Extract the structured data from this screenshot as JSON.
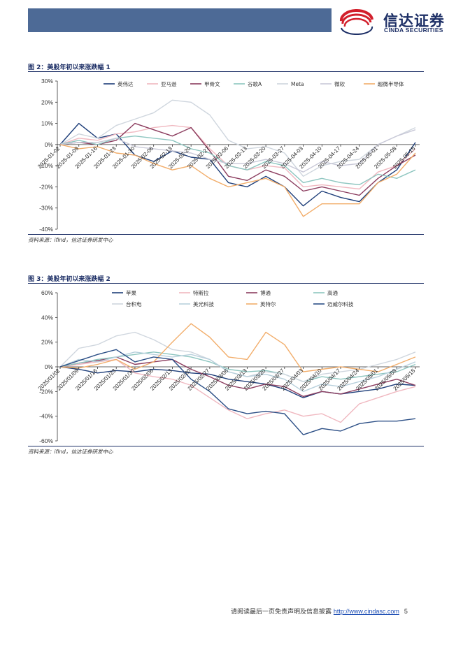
{
  "header": {
    "bar_color": "#4d6a96"
  },
  "logo": {
    "name_cn": "信达证券",
    "name_en": "CINDA SECURITIES"
  },
  "figure2": {
    "title": "图 2：美股年初以来涨跌幅 1",
    "source": "资料来源：ifind，信达证券研发中心"
  },
  "figure3": {
    "title": "图 3：美股年初以来涨跌幅 2",
    "source": "资料来源：ifind，信达证券研发中心"
  },
  "footer": {
    "disclaimer": "请阅读最后一页免责声明及信息披露",
    "url": "http://www.cindasc.com",
    "page": "5"
  },
  "chart_data": [
    {
      "type": "line",
      "ylim": [
        -40,
        30
      ],
      "yticks": [
        -40,
        -30,
        -20,
        -10,
        0,
        10,
        20,
        30
      ],
      "ytick_labels": [
        "-40%",
        "-30%",
        "-20%",
        "-10%",
        "0%",
        "10%",
        "20%",
        "30%"
      ],
      "x_tick_labels": [
        "2025-01-02",
        "2025-01-09",
        "2025-01-16",
        "2025-01-23",
        "2025-01-30",
        "2025-02-06",
        "2025-02-13",
        "2025-02-20",
        "2025-02-27",
        "2025-03-06",
        "2025-03-13",
        "2025-03-20",
        "2025-03-27",
        "2025-04-03",
        "2025-04-10",
        "2025-04-17",
        "2025-04-24",
        "2025-05-01",
        "2025-05-08",
        "2025-05-15"
      ],
      "legend_position": "top",
      "series": [
        {
          "name": "英伟达",
          "color": "#1f3f7a",
          "values": [
            0,
            10,
            3,
            5,
            -5,
            -8,
            -3,
            -6,
            -7,
            -18,
            -20,
            -15,
            -20,
            -29,
            -22,
            -25,
            -27,
            -18,
            -12,
            1
          ]
        },
        {
          "name": "亚马逊",
          "color": "#f0b8c0",
          "values": [
            0,
            3,
            2,
            5,
            6,
            8,
            9,
            8,
            -2,
            -10,
            -12,
            -10,
            -11,
            -20,
            -19,
            -20,
            -21,
            -13,
            -10,
            -2
          ]
        },
        {
          "name": "甲骨文",
          "color": "#8c3d5f",
          "values": [
            0,
            1,
            0,
            2,
            10,
            7,
            4,
            8,
            -3,
            -15,
            -17,
            -12,
            -15,
            -22,
            -20,
            -22,
            -24,
            -16,
            -10,
            -5
          ]
        },
        {
          "name": "谷歌A",
          "color": "#8ec6c0",
          "values": [
            0,
            2,
            0,
            3,
            4,
            3,
            2,
            -2,
            -4,
            -10,
            -12,
            -8,
            -10,
            -18,
            -16,
            -18,
            -19,
            -14,
            -16,
            -12
          ]
        },
        {
          "name": "Meta",
          "color": "#cfd6de",
          "values": [
            0,
            5,
            3,
            9,
            12,
            15,
            21,
            20,
            14,
            2,
            -2,
            -1,
            -4,
            -15,
            -10,
            -8,
            -7,
            0,
            4,
            8
          ]
        },
        {
          "name": "微软",
          "color": "#c9c9d8",
          "values": [
            0,
            1,
            1,
            3,
            -1,
            -2,
            -3,
            -4,
            -7,
            -9,
            -9,
            -7,
            -9,
            -13,
            -8,
            -10,
            -9,
            0,
            4,
            7
          ]
        },
        {
          "name": "超微半导体",
          "color": "#f2ad6a",
          "values": [
            0,
            -2,
            -1,
            -4,
            -5,
            -9,
            -12,
            -10,
            -16,
            -20,
            -18,
            -16,
            -20,
            -34,
            -28,
            -28,
            -28,
            -18,
            -14,
            -4
          ]
        }
      ]
    },
    {
      "type": "line",
      "ylim": [
        -60,
        60
      ],
      "yticks": [
        -60,
        -40,
        -20,
        0,
        20,
        40,
        60
      ],
      "ytick_labels": [
        "-60%",
        "-40%",
        "-20%",
        "0%",
        "20%",
        "40%",
        "60%"
      ],
      "x_tick_labels": [
        "2025/01/02",
        "2025/01/09",
        "2025/01/16",
        "2025/01/23",
        "2025/01/30",
        "2025/02/06",
        "2025/02/13",
        "2025/02/20",
        "2025/02/27",
        "2025/03/06",
        "2025/03/13",
        "2025/03/20",
        "2025/03/27",
        "2025/04/03",
        "2025/04/10",
        "2025/04/17",
        "2025/04/24",
        "2025/05/01",
        "2025/05/08",
        "2025/05/15"
      ],
      "legend_position": "top",
      "series": [
        {
          "name": "苹果",
          "color": "#1f3f7a",
          "values": [
            0,
            -2,
            -5,
            -3,
            -4,
            -2,
            -3,
            -5,
            -6,
            -10,
            -12,
            -14,
            -18,
            -25,
            -20,
            -22,
            -20,
            -18,
            -14,
            -15
          ]
        },
        {
          "name": "特斯拉",
          "color": "#f0b8c0",
          "values": [
            0,
            2,
            4,
            6,
            -5,
            -8,
            -10,
            -15,
            -25,
            -35,
            -42,
            -38,
            -35,
            -40,
            -38,
            -45,
            -30,
            -25,
            -20,
            -16
          ]
        },
        {
          "name": "博通",
          "color": "#8c3d5f",
          "values": [
            0,
            3,
            5,
            8,
            2,
            4,
            6,
            -2,
            -8,
            -15,
            -18,
            -14,
            -16,
            -24,
            -20,
            -22,
            -18,
            -14,
            -10,
            -15
          ]
        },
        {
          "name": "高通",
          "color": "#8ec6c0",
          "values": [
            0,
            3,
            6,
            8,
            10,
            12,
            10,
            8,
            4,
            -2,
            -4,
            -3,
            -6,
            -12,
            -8,
            -10,
            -8,
            -6,
            -4,
            2
          ]
        },
        {
          "name": "台积电",
          "color": "#cfd6de",
          "values": [
            0,
            15,
            18,
            25,
            28,
            22,
            14,
            12,
            6,
            -4,
            -8,
            -4,
            -6,
            -12,
            -6,
            -4,
            -2,
            2,
            6,
            12
          ]
        },
        {
          "name": "美光科技",
          "color": "#b8d0dc",
          "values": [
            0,
            6,
            4,
            8,
            12,
            10,
            8,
            10,
            6,
            -4,
            -8,
            -6,
            -10,
            -20,
            -14,
            -16,
            -12,
            -8,
            -2,
            4
          ]
        },
        {
          "name": "英特尔",
          "color": "#f2ad6a",
          "values": [
            0,
            -1,
            2,
            6,
            -2,
            4,
            20,
            35,
            24,
            8,
            6,
            28,
            18,
            -4,
            -2,
            0,
            -2,
            -4,
            2,
            8
          ]
        },
        {
          "name": "迈威尔科技",
          "color": "#2c4f86",
          "values": [
            0,
            5,
            10,
            14,
            4,
            8,
            6,
            -10,
            -20,
            -34,
            -38,
            -36,
            -38,
            -55,
            -50,
            -52,
            -46,
            -44,
            -44,
            -42
          ]
        }
      ]
    }
  ]
}
